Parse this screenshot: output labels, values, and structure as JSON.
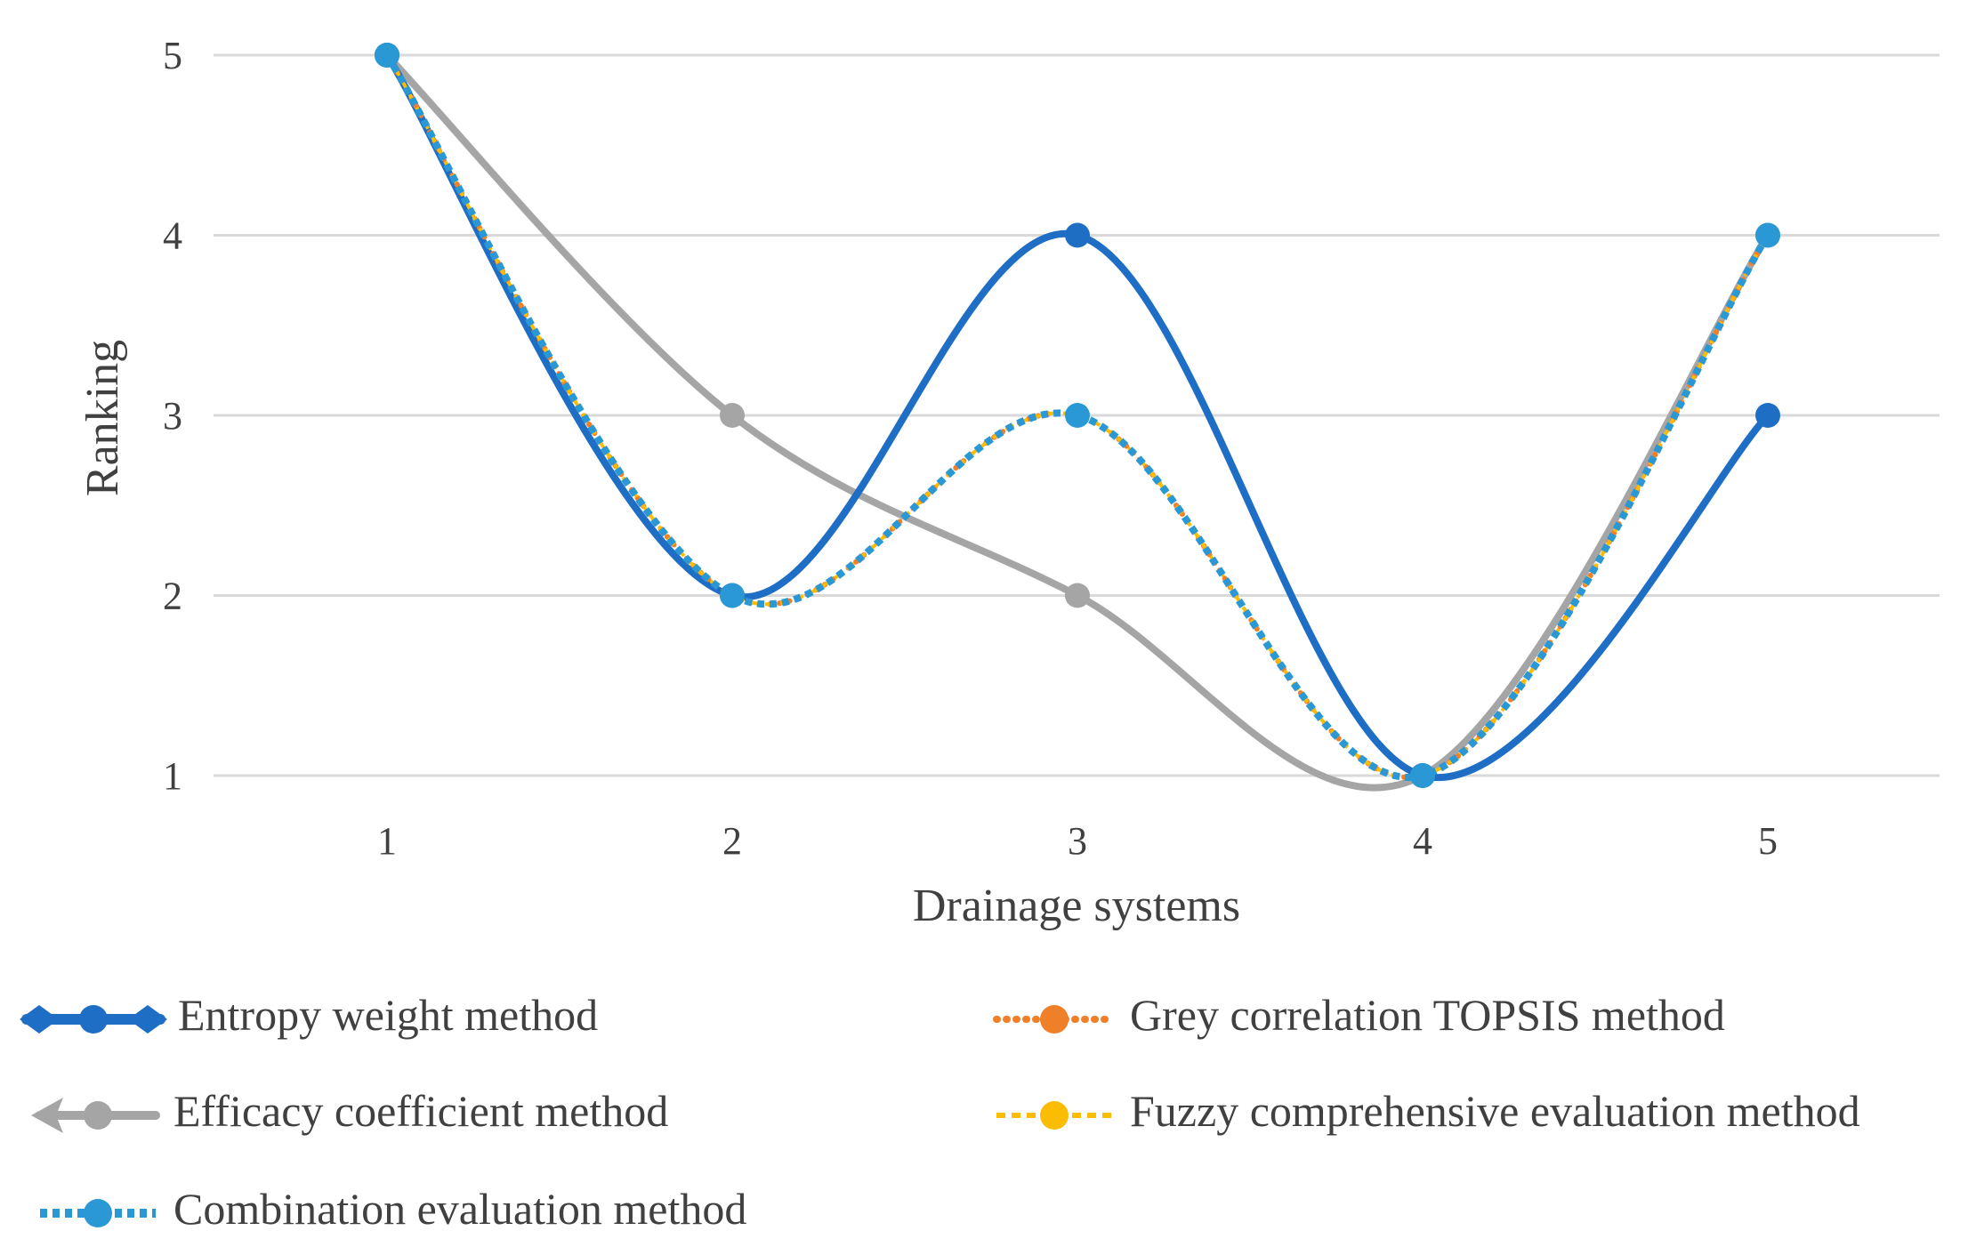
{
  "chart_data": {
    "type": "line",
    "title": "",
    "xlabel": "Drainage systems",
    "ylabel": "Ranking",
    "categories": [
      "1",
      "2",
      "3",
      "4",
      "5"
    ],
    "y_ticks": [
      "1",
      "2",
      "3",
      "4",
      "5"
    ],
    "ylim": [
      1,
      5
    ],
    "grid": true,
    "legend_position": "bottom",
    "series": [
      {
        "name": "Entropy weight method",
        "values": [
          5,
          2,
          4,
          1,
          3
        ],
        "color": "#1f6ec5",
        "line_style": "solid",
        "marker": "circle",
        "smooth": true,
        "legend_marker": "diamond-circle"
      },
      {
        "name": "Efficacy coefficient method",
        "values": [
          5,
          3,
          2,
          1,
          4
        ],
        "color": "#a5a5a5",
        "line_style": "solid",
        "marker": "circle",
        "smooth": true,
        "legend_marker": "arrow-circle"
      },
      {
        "name": "Grey correlation TOPSIS method",
        "values": [
          5,
          2,
          3,
          1,
          4
        ],
        "color": "#f07f2a",
        "line_style": "dotted",
        "marker": "circle",
        "smooth": true,
        "legend_marker": "circle"
      },
      {
        "name": "Fuzzy comprehensive evaluation method",
        "values": [
          5,
          2,
          3,
          1,
          4
        ],
        "color": "#fbbd04",
        "line_style": "dashed",
        "marker": "circle",
        "smooth": true,
        "legend_marker": "circle"
      },
      {
        "name": "Combination evaluation method",
        "values": [
          5,
          2,
          3,
          1,
          4
        ],
        "color": "#2b98d6",
        "line_style": "square-dot",
        "marker": "circle",
        "smooth": true,
        "legend_marker": "circle"
      }
    ]
  }
}
